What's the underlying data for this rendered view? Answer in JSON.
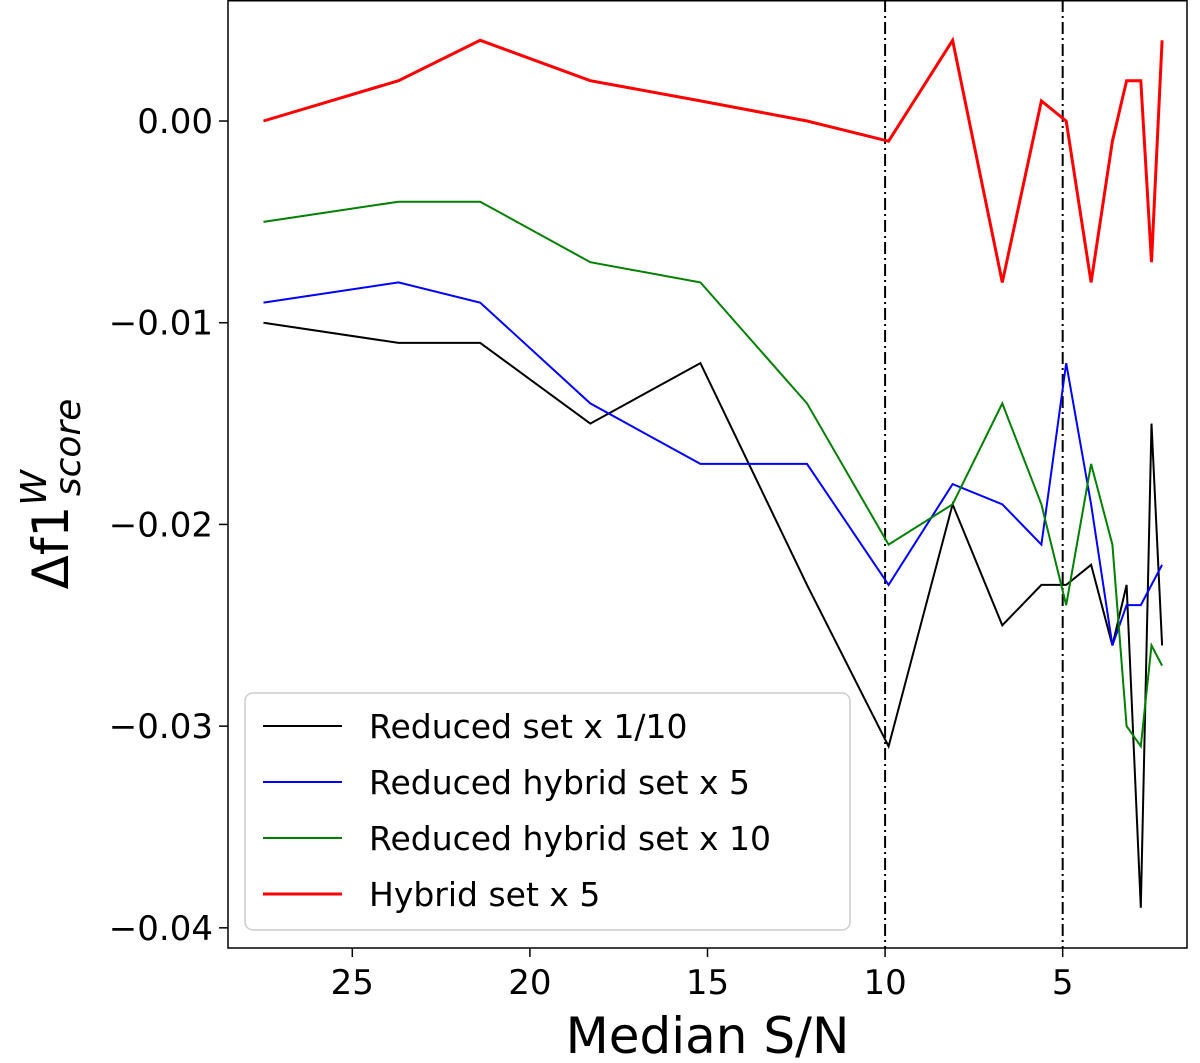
{
  "chart_data": {
    "type": "line",
    "title": "",
    "xlabel": "Median S/N",
    "ylabel": {
      "base": "Δf1",
      "sup": "W",
      "sub": "score"
    },
    "xlim": [
      28.5,
      1.5
    ],
    "ylim": [
      -0.041,
      0.006
    ],
    "xticks": [
      25,
      20,
      15,
      10,
      5
    ],
    "xtick_labels": [
      "25",
      "20",
      "15",
      "10",
      "5"
    ],
    "yticks": [
      0.0,
      -0.01,
      -0.02,
      -0.03,
      -0.04
    ],
    "ytick_labels": [
      "0.00",
      "−0.01",
      "−0.02",
      "−0.03",
      "−0.04"
    ],
    "vlines": [
      10,
      5
    ],
    "x": [
      27.5,
      23.7,
      21.4,
      18.3,
      15.2,
      12.2,
      9.9,
      8.1,
      6.7,
      5.6,
      4.9,
      4.2,
      3.6,
      3.2,
      2.8,
      2.5,
      2.2
    ],
    "series": [
      {
        "name": "Reduced set x 1/10",
        "color": "#000000",
        "width": 2,
        "values": [
          -0.01,
          -0.011,
          -0.011,
          -0.015,
          -0.012,
          -0.023,
          -0.031,
          -0.019,
          -0.025,
          -0.023,
          -0.023,
          -0.022,
          -0.026,
          -0.023,
          -0.039,
          -0.015,
          -0.026
        ]
      },
      {
        "name": "Reduced hybrid set x 5",
        "color": "#0000ff",
        "width": 2,
        "values": [
          -0.009,
          -0.008,
          -0.009,
          -0.014,
          -0.017,
          -0.017,
          -0.023,
          -0.018,
          -0.019,
          -0.021,
          -0.012,
          -0.019,
          -0.026,
          -0.024,
          -0.024,
          -0.023,
          -0.022
        ]
      },
      {
        "name": "Reduced hybrid set x 10",
        "color": "#008000",
        "width": 2,
        "values": [
          -0.005,
          -0.004,
          -0.004,
          -0.007,
          -0.008,
          -0.014,
          -0.021,
          -0.019,
          -0.014,
          -0.019,
          -0.024,
          -0.017,
          -0.021,
          -0.03,
          -0.031,
          -0.026,
          -0.027
        ]
      },
      {
        "name": "Hybrid set x 5",
        "color": "#ff0000",
        "width": 3,
        "values": [
          0.0,
          0.002,
          0.004,
          0.002,
          0.001,
          0.0,
          -0.001,
          0.004,
          -0.008,
          0.001,
          0.0,
          -0.008,
          -0.001,
          0.002,
          0.002,
          -0.007,
          0.004
        ]
      }
    ],
    "legend": {
      "location": "lower-left",
      "entries": [
        "Reduced set x 1/10",
        "Reduced hybrid set x 5",
        "Reduced hybrid set x 10",
        "Hybrid set x 5"
      ]
    },
    "grid": false
  }
}
